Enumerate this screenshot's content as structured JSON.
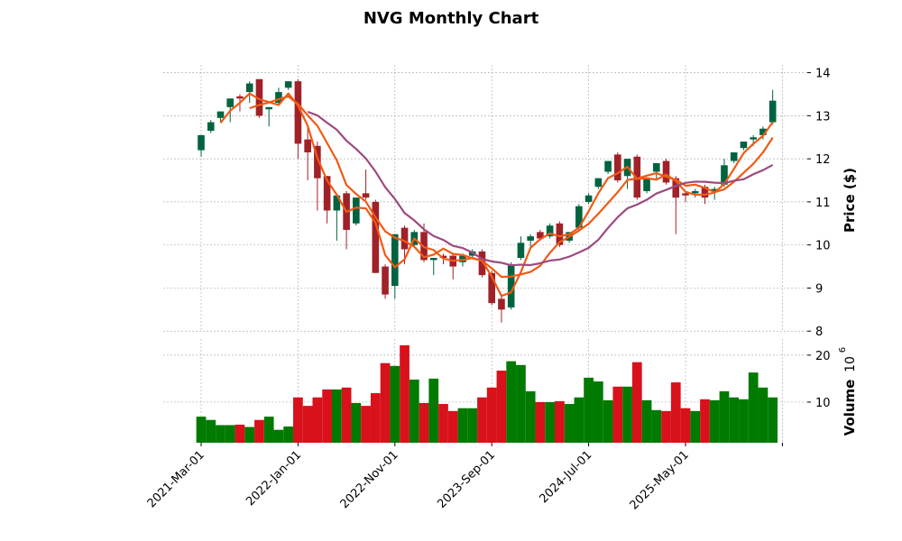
{
  "chart_data": {
    "type": "candlestick",
    "title": "NVG Monthly Chart",
    "ylabel": "Price ($)",
    "volume_label": "Volume",
    "volume_exponent": "10",
    "volume_exponent_power": "6",
    "ylim": [
      7.9,
      14.18
    ],
    "yticks": [
      "8",
      "9",
      "10",
      "11",
      "12",
      "13",
      "14"
    ],
    "volume_ylim": [
      1.35,
      24.2
    ],
    "volume_yticks": [
      "10",
      "20"
    ],
    "xtick_labels": [
      {
        "index": 0,
        "label": "2021-Mar-01"
      },
      {
        "index": 10,
        "label": "2022-Jan-01"
      },
      {
        "index": 20,
        "label": "2022-Nov-01"
      },
      {
        "index": 30,
        "label": "2023-Sep-01"
      },
      {
        "index": 40,
        "label": "2024-Jul-01"
      },
      {
        "index": 50,
        "label": "2025-May-01"
      },
      {
        "index": 60,
        "label": ""
      }
    ],
    "moving_averages": [
      {
        "window": 3,
        "color": "#f05a14"
      },
      {
        "window": 6,
        "color": "#f05a14"
      },
      {
        "window": 12,
        "color": "#9c4a80"
      }
    ],
    "colors": {
      "up": "#006340",
      "down": "#a02128",
      "vol_up": "#007a00",
      "vol_down": "#d8111b",
      "grid": "#b0b0b0"
    },
    "ohlcv": [
      [
        12.2,
        12.55,
        12.05,
        12.55,
        6.9
      ],
      [
        12.65,
        12.9,
        12.6,
        12.85,
        6.2
      ],
      [
        12.95,
        13.1,
        12.85,
        13.1,
        5.1
      ],
      [
        13.2,
        13.4,
        12.85,
        13.4,
        5.1
      ],
      [
        13.45,
        13.5,
        13.1,
        13.4,
        5.2
      ],
      [
        13.55,
        13.8,
        13.3,
        13.75,
        4.7
      ],
      [
        13.85,
        13.85,
        12.95,
        13.0,
        6.2
      ],
      [
        13.15,
        13.2,
        12.75,
        13.2,
        6.9
      ],
      [
        13.3,
        13.65,
        13.25,
        13.55,
        4.1
      ],
      [
        13.65,
        13.8,
        13.6,
        13.8,
        4.8
      ],
      [
        13.8,
        13.85,
        12.0,
        12.35,
        11.0
      ],
      [
        12.45,
        12.75,
        11.5,
        12.15,
        9.2
      ],
      [
        12.3,
        12.4,
        10.8,
        11.55,
        11.0
      ],
      [
        11.6,
        11.6,
        10.5,
        10.8,
        12.7
      ],
      [
        10.8,
        11.15,
        10.1,
        11.15,
        12.7
      ],
      [
        11.2,
        11.25,
        9.9,
        10.35,
        13.1
      ],
      [
        10.5,
        11.1,
        10.45,
        11.1,
        9.8
      ],
      [
        11.2,
        11.75,
        11.05,
        11.1,
        9.2
      ],
      [
        11.0,
        11.05,
        9.35,
        9.35,
        11.9
      ],
      [
        9.5,
        9.55,
        8.75,
        8.85,
        18.3
      ],
      [
        9.05,
        10.25,
        8.75,
        10.25,
        17.7
      ],
      [
        10.4,
        10.45,
        9.55,
        9.9,
        22.1
      ],
      [
        10.0,
        10.35,
        9.95,
        10.3,
        14.8
      ],
      [
        10.3,
        10.5,
        9.6,
        9.65,
        9.8
      ],
      [
        9.65,
        9.7,
        9.3,
        9.7,
        15.0
      ],
      [
        9.75,
        9.8,
        9.55,
        9.7,
        9.6
      ],
      [
        9.75,
        9.8,
        9.2,
        9.5,
        8.1
      ],
      [
        9.6,
        9.8,
        9.5,
        9.75,
        8.7
      ],
      [
        9.75,
        9.9,
        9.7,
        9.85,
        8.7
      ],
      [
        9.85,
        9.9,
        9.25,
        9.3,
        11.0
      ],
      [
        9.35,
        9.4,
        8.6,
        8.65,
        13.1
      ],
      [
        8.75,
        8.8,
        8.2,
        8.5,
        16.7
      ],
      [
        8.55,
        9.6,
        8.5,
        9.55,
        18.7
      ],
      [
        9.7,
        10.2,
        9.65,
        10.05,
        17.9
      ],
      [
        10.1,
        10.25,
        9.9,
        10.2,
        12.3
      ],
      [
        10.3,
        10.35,
        10.1,
        10.15,
        10.0
      ],
      [
        10.2,
        10.5,
        10.15,
        10.45,
        10.0
      ],
      [
        10.5,
        10.55,
        9.95,
        10.0,
        10.2
      ],
      [
        10.1,
        10.3,
        10.05,
        10.3,
        9.6
      ],
      [
        10.4,
        10.95,
        10.35,
        10.9,
        11.0
      ],
      [
        11.0,
        11.2,
        10.95,
        11.15,
        15.2
      ],
      [
        11.35,
        11.55,
        11.3,
        11.55,
        14.4
      ],
      [
        11.7,
        11.95,
        11.65,
        11.95,
        10.4
      ],
      [
        12.1,
        12.15,
        11.45,
        11.5,
        13.3
      ],
      [
        11.6,
        12.0,
        11.3,
        12.0,
        13.3
      ],
      [
        12.05,
        12.1,
        11.05,
        11.1,
        18.5
      ],
      [
        11.25,
        11.55,
        11.2,
        11.55,
        10.4
      ],
      [
        11.7,
        11.9,
        11.5,
        11.9,
        8.3
      ],
      [
        11.95,
        12.0,
        11.4,
        11.45,
        8.1
      ],
      [
        11.55,
        11.6,
        10.25,
        11.1,
        14.2
      ],
      [
        11.2,
        11.25,
        11.0,
        11.15,
        8.7
      ],
      [
        11.2,
        11.3,
        11.1,
        11.25,
        8.1
      ],
      [
        11.35,
        11.4,
        10.95,
        11.1,
        10.6
      ],
      [
        11.25,
        11.35,
        11.05,
        11.3,
        10.4
      ],
      [
        11.4,
        12.0,
        11.35,
        11.85,
        12.3
      ],
      [
        11.95,
        12.15,
        11.9,
        12.15,
        11.0
      ],
      [
        12.25,
        12.4,
        12.2,
        12.4,
        10.6
      ],
      [
        12.45,
        12.55,
        12.3,
        12.5,
        16.3
      ],
      [
        12.55,
        12.75,
        12.45,
        12.7,
        13.1
      ],
      [
        12.85,
        13.6,
        12.8,
        13.35,
        11.0
      ]
    ]
  }
}
